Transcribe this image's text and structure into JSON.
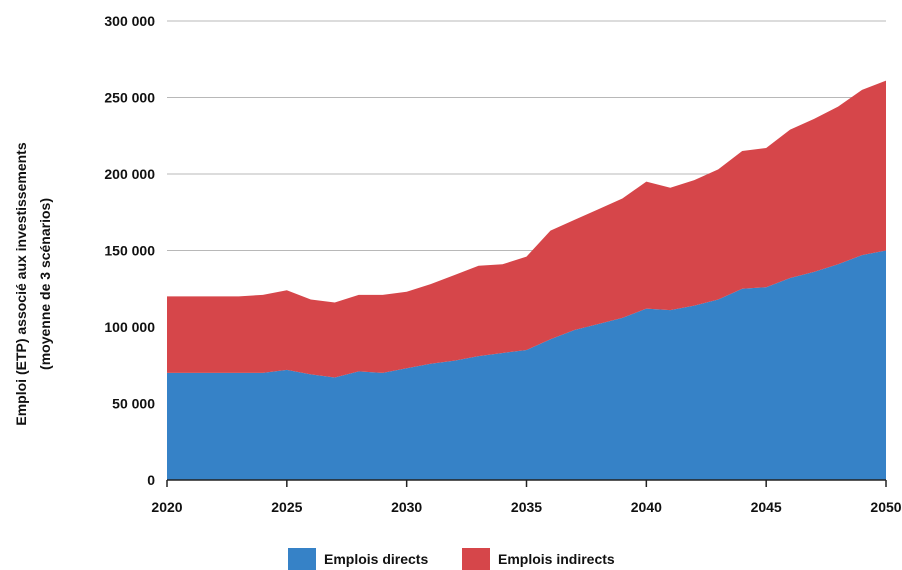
{
  "chart_data": {
    "type": "area",
    "stacked": true,
    "title": "",
    "xlabel": "",
    "ylabel_line1": "Emploi (ETP) associé aux investissements",
    "ylabel_line2": "(moyenne de 3 scénarios)",
    "ylim": [
      0,
      300000
    ],
    "xlim": [
      2020,
      2050
    ],
    "y_ticks": [
      0,
      50000,
      100000,
      150000,
      200000,
      250000,
      300000
    ],
    "y_tick_labels": [
      "0",
      "50 000",
      "100 000",
      "150 000",
      "200 000",
      "250 000",
      "300 000"
    ],
    "x_ticks": [
      2020,
      2025,
      2030,
      2035,
      2040,
      2045,
      2050
    ],
    "x_tick_labels": [
      "2020",
      "2025",
      "2030",
      "2035",
      "2040",
      "2045",
      "2050"
    ],
    "grid": "horizontal",
    "legend_position": "bottom",
    "x": [
      2020,
      2021,
      2022,
      2023,
      2024,
      2025,
      2026,
      2027,
      2028,
      2029,
      2030,
      2031,
      2032,
      2033,
      2034,
      2035,
      2036,
      2037,
      2038,
      2039,
      2040,
      2041,
      2042,
      2043,
      2044,
      2045,
      2046,
      2047,
      2048,
      2049,
      2050
    ],
    "series": [
      {
        "name": "Emplois directs",
        "color": "#3682c7",
        "values": [
          70000,
          70000,
          70000,
          70000,
          70000,
          72000,
          69000,
          67000,
          71000,
          70000,
          73000,
          76000,
          78000,
          81000,
          83000,
          85000,
          92000,
          98000,
          102000,
          106000,
          112000,
          111000,
          114000,
          118000,
          125000,
          126000,
          132000,
          136000,
          141000,
          147000,
          150000
        ]
      },
      {
        "name": "Emplois indirects",
        "color": "#d6464a",
        "values": [
          50000,
          50000,
          50000,
          50000,
          51000,
          52000,
          49000,
          49000,
          50000,
          51000,
          50000,
          52000,
          56000,
          59000,
          58000,
          61000,
          71000,
          72000,
          75000,
          78000,
          83000,
          80000,
          82000,
          85000,
          90000,
          91000,
          97000,
          100000,
          103000,
          108000,
          111000
        ]
      }
    ]
  }
}
